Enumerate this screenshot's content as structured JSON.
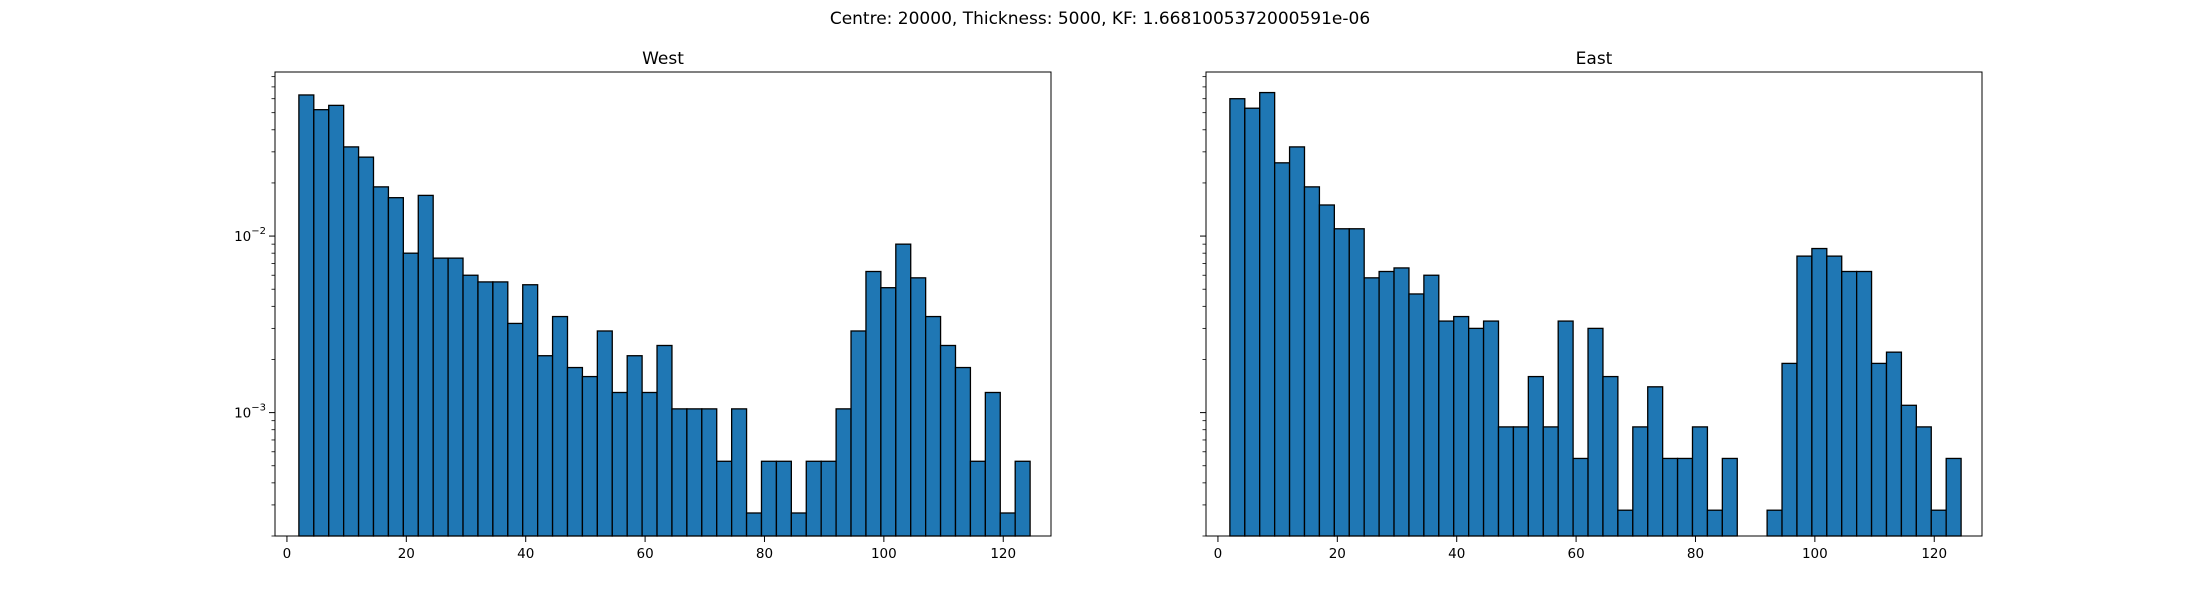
{
  "figure": {
    "suptitle": "Centre: 20000, Thickness: 5000, KF: 1.6681005372000591e-06"
  },
  "colors": {
    "bar_fill": "#1f77b4",
    "bar_edge": "#000000"
  },
  "chart_data": [
    {
      "type": "bar",
      "title": "West",
      "xlabel": "",
      "ylabel": "",
      "yscale": "log",
      "xlim": [
        -2.0,
        128.0
      ],
      "ylim": [
        0.0002,
        0.085
      ],
      "grid": false,
      "x_ticks": [
        0,
        20,
        40,
        60,
        80,
        100,
        120
      ],
      "y_tick_labels": [
        "10^-3",
        "10^-2"
      ],
      "bin_width": 2.5,
      "bins_start": 2.0,
      "values": [
        0.063,
        0.052,
        0.055,
        0.032,
        0.028,
        0.019,
        0.0165,
        0.008,
        0.017,
        0.0075,
        0.0075,
        0.006,
        0.0055,
        0.0055,
        0.0032,
        0.0053,
        0.0021,
        0.0035,
        0.0018,
        0.0016,
        0.0029,
        0.0013,
        0.0021,
        0.0013,
        0.0024,
        0.00105,
        0.00105,
        0.00105,
        0.00053,
        0.00105,
        0.00027,
        0.00053,
        0.00053,
        0.00027,
        0.00053,
        0.00053,
        0.00105,
        0.0029,
        0.0063,
        0.0051,
        0.009,
        0.0058,
        0.0035,
        0.0024,
        0.0018,
        0.00053,
        0.0013,
        0.00027,
        0.00053
      ]
    },
    {
      "type": "bar",
      "title": "East",
      "xlabel": "",
      "ylabel": "",
      "yscale": "log",
      "xlim": [
        -2.0,
        128.0
      ],
      "ylim": [
        0.0002,
        0.085
      ],
      "grid": false,
      "x_ticks": [
        0,
        20,
        40,
        60,
        80,
        100,
        120
      ],
      "y_tick_labels": [],
      "bin_width": 2.5,
      "bins_start": 2.0,
      "values": [
        0.06,
        0.053,
        0.065,
        0.026,
        0.032,
        0.019,
        0.015,
        0.011,
        0.011,
        0.0058,
        0.0063,
        0.0066,
        0.0047,
        0.006,
        0.0033,
        0.0035,
        0.003,
        0.0033,
        0.00083,
        0.00083,
        0.0016,
        0.00083,
        0.0033,
        0.00055,
        0.003,
        0.0016,
        0.00028,
        0.00083,
        0.0014,
        0.00055,
        0.00055,
        0.00083,
        0.00028,
        0.00055,
        0,
        0,
        0.00028,
        0.0019,
        0.0077,
        0.0085,
        0.0077,
        0.0063,
        0.0063,
        0.0019,
        0.0022,
        0.0011,
        0.00083,
        0.00028,
        0.00055
      ]
    }
  ]
}
